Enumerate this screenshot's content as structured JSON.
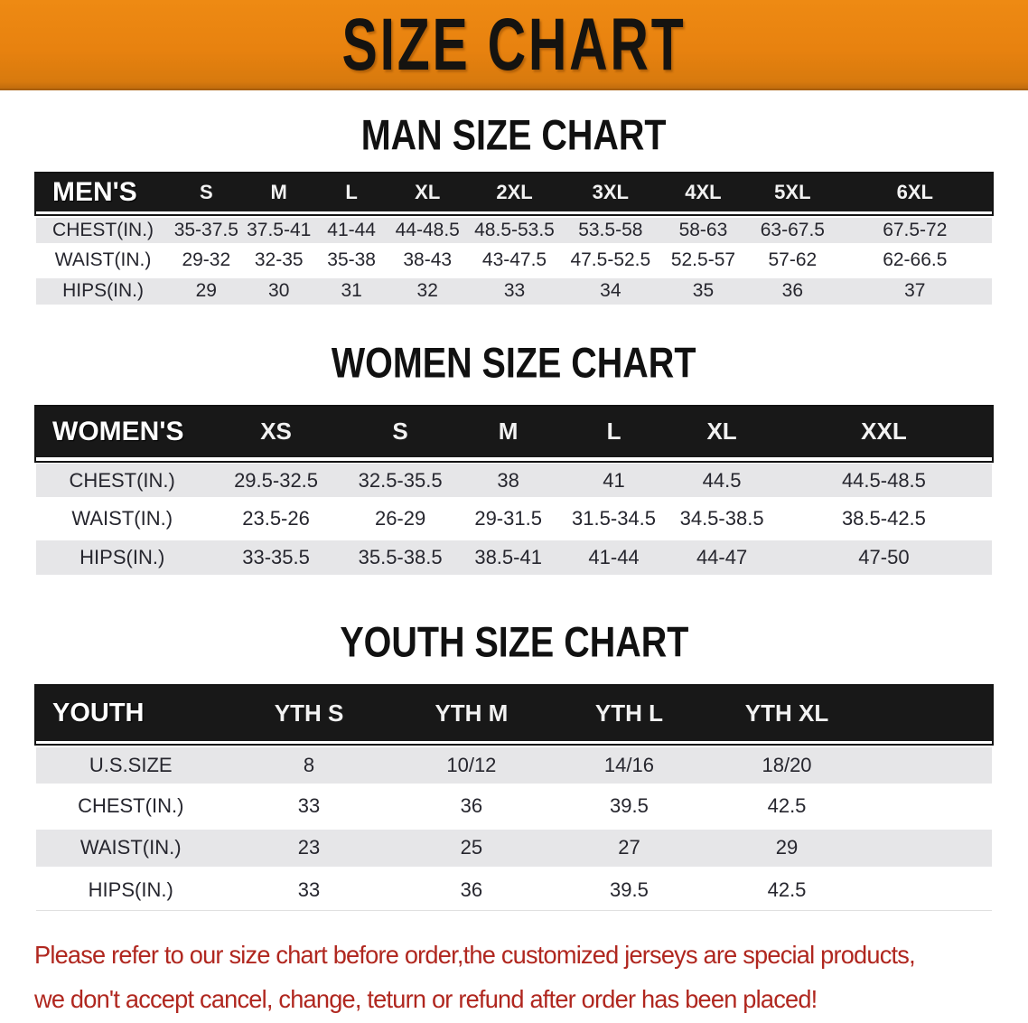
{
  "banner": {
    "title": "SIZE CHART",
    "bg_color": "#E8820F"
  },
  "man": {
    "heading": "MAN SIZE CHART",
    "table": {
      "header": [
        "MEN'S",
        "S",
        "M",
        "L",
        "XL",
        "2XL",
        "3XL",
        "4XL",
        "5XL",
        "6XL"
      ],
      "rows": [
        {
          "label": "CHEST(IN.)",
          "values": [
            "35-37.5",
            "37.5-41",
            "41-44",
            "44-48.5",
            "48.5-53.5",
            "53.5-58",
            "58-63",
            "63-67.5",
            "67.5-72"
          ]
        },
        {
          "label": "WAIST(IN.)",
          "values": [
            "29-32",
            "32-35",
            "35-38",
            "38-43",
            "43-47.5",
            "47.5-52.5",
            "52.5-57",
            "57-62",
            "62-66.5"
          ]
        },
        {
          "label": "HIPS(IN.)",
          "values": [
            "29",
            "30",
            "31",
            "32",
            "33",
            "34",
            "35",
            "36",
            "37"
          ]
        }
      ]
    }
  },
  "women": {
    "heading": "WOMEN SIZE CHART",
    "table": {
      "header": [
        "WOMEN'S",
        "XS",
        "S",
        "M",
        "L",
        "XL",
        "XXL"
      ],
      "rows": [
        {
          "label": "CHEST(IN.)",
          "values": [
            "29.5-32.5",
            "32.5-35.5",
            "38",
            "41",
            "44.5",
            "44.5-48.5"
          ]
        },
        {
          "label": "WAIST(IN.)",
          "values": [
            "23.5-26",
            "26-29",
            "29-31.5",
            "31.5-34.5",
            "34.5-38.5",
            "38.5-42.5"
          ]
        },
        {
          "label": "HIPS(IN.)",
          "values": [
            "33-35.5",
            "35.5-38.5",
            "38.5-41",
            "41-44",
            "44-47",
            "47-50"
          ]
        }
      ]
    }
  },
  "youth": {
    "heading": "YOUTH SIZE CHART",
    "table": {
      "header": [
        "YOUTH",
        "YTH S",
        "YTH M",
        "YTH L",
        "YTH XL",
        ""
      ],
      "rows": [
        {
          "label": "U.S.SIZE",
          "values": [
            "8",
            "10/12",
            "14/16",
            "18/20"
          ]
        },
        {
          "label": "CHEST(IN.)",
          "values": [
            "33",
            "36",
            "39.5",
            "42.5"
          ]
        },
        {
          "label": "WAIST(IN.)",
          "values": [
            "23",
            "25",
            "27",
            "29"
          ]
        },
        {
          "label": "HIPS(IN.)",
          "values": [
            "33",
            "36",
            "39.5",
            "42.5"
          ]
        }
      ]
    }
  },
  "footer": {
    "line1": "Please refer to our size chart before order,the customized jerseys are special products,",
    "line2": "we don't accept cancel, change, teturn or refund after order has been placed!",
    "text_color": "#B0271F"
  }
}
